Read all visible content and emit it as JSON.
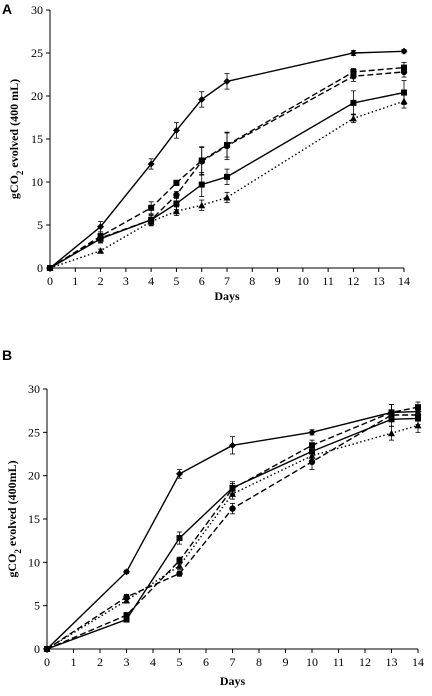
{
  "chart_data": [
    {
      "type": "line",
      "panel": "A",
      "xlabel": "Days",
      "ylabel": "gCO2 evolved (400 mL)",
      "ylabel_main": "gCO",
      "ylabel_sub": "2",
      "ylabel_rest": " evolved (400 mL)",
      "xlim": [
        0,
        14
      ],
      "ylim": [
        0,
        30
      ],
      "xticks": [
        0,
        1,
        2,
        3,
        4,
        5,
        6,
        7,
        8,
        9,
        10,
        11,
        12,
        13,
        14
      ],
      "yticks": [
        0,
        5,
        10,
        15,
        20,
        25,
        30
      ],
      "grid": false,
      "series": [
        {
          "marker": "diamond",
          "line": "solid",
          "x": [
            0,
            2,
            4,
            5,
            6,
            7,
            12,
            14
          ],
          "y": [
            0,
            4.8,
            12.1,
            16.0,
            19.6,
            21.7,
            25.0,
            25.2
          ],
          "err": [
            0,
            0.6,
            0.6,
            0.9,
            0.9,
            0.9,
            0.3,
            0.2
          ]
        },
        {
          "marker": "square",
          "line": "dashed",
          "x": [
            0,
            2,
            4,
            5,
            6,
            7,
            12,
            14
          ],
          "y": [
            0,
            3.7,
            7.0,
            9.9,
            12.5,
            14.3,
            22.8,
            23.3
          ],
          "err": [
            0,
            0.5,
            0.7,
            0.3,
            1.6,
            1.4,
            0.4,
            0.6
          ]
        },
        {
          "marker": "circle",
          "line": "dashed",
          "x": [
            0,
            2,
            4,
            5,
            6,
            7,
            12,
            14
          ],
          "y": [
            0,
            3.5,
            5.6,
            8.5,
            12.4,
            14.2,
            22.3,
            22.8
          ],
          "err": [
            0,
            0.5,
            0.5,
            0.4,
            1.6,
            1.6,
            0.6,
            0.6
          ]
        },
        {
          "marker": "square",
          "line": "solid",
          "x": [
            0,
            2,
            4,
            5,
            6,
            7,
            12,
            14
          ],
          "y": [
            0,
            3.4,
            5.6,
            7.5,
            9.7,
            10.6,
            19.2,
            20.4
          ],
          "err": [
            0,
            0.5,
            0.6,
            0.7,
            1.4,
            0.9,
            1.4,
            1.4
          ]
        },
        {
          "marker": "triangle",
          "line": "dotted",
          "x": [
            0,
            2,
            4,
            5,
            6,
            7,
            12,
            14
          ],
          "y": [
            0,
            2.0,
            5.4,
            6.6,
            7.3,
            8.2,
            17.4,
            19.4
          ],
          "err": [
            0,
            0.2,
            0.5,
            0.5,
            0.6,
            0.6,
            0.5,
            0.8
          ]
        }
      ]
    },
    {
      "type": "line",
      "panel": "B",
      "xlabel": "Days",
      "ylabel": "gCO2 evolved (400mL)",
      "ylabel_main": "gCO",
      "ylabel_sub": "2",
      "ylabel_rest": " evolved (400mL)",
      "xlim": [
        0,
        14
      ],
      "ylim": [
        0,
        30
      ],
      "xticks": [
        0,
        1,
        2,
        3,
        4,
        5,
        6,
        7,
        8,
        9,
        10,
        11,
        12,
        13,
        14
      ],
      "yticks": [
        0,
        5,
        10,
        15,
        20,
        25,
        30
      ],
      "grid": false,
      "series": [
        {
          "marker": "diamond",
          "line": "solid",
          "x": [
            0,
            3,
            5,
            7,
            10,
            13,
            14
          ],
          "y": [
            0,
            8.9,
            20.2,
            23.5,
            25.0,
            27.3,
            27.4
          ],
          "err": [
            0,
            0.2,
            0.5,
            1.0,
            0.3,
            0.9,
            0.7
          ]
        },
        {
          "marker": "square",
          "line": "solid",
          "x": [
            0,
            3,
            5,
            7,
            10,
            13,
            14
          ],
          "y": [
            0,
            3.4,
            12.8,
            18.6,
            22.8,
            26.5,
            26.6
          ],
          "err": [
            0,
            0.3,
            0.7,
            0.7,
            0.7,
            0.8,
            0.7
          ]
        },
        {
          "marker": "square",
          "line": "dashed",
          "x": [
            0,
            3,
            5,
            7,
            10,
            13,
            14
          ],
          "y": [
            0,
            3.9,
            10.2,
            18.5,
            23.5,
            27.3,
            27.9
          ],
          "err": [
            0,
            0.3,
            0.4,
            0.6,
            0.6,
            0.9,
            0.6
          ]
        },
        {
          "marker": "circle",
          "line": "dashed",
          "x": [
            0,
            3,
            5,
            7,
            10,
            13,
            14
          ],
          "y": [
            0,
            6.0,
            8.7,
            16.2,
            21.6,
            27.0,
            27.0
          ],
          "err": [
            0,
            0.3,
            0.3,
            0.6,
            0.9,
            0.6,
            0.7
          ]
        },
        {
          "marker": "triangle",
          "line": "dotted",
          "x": [
            0,
            3,
            5,
            7,
            10,
            13,
            14
          ],
          "y": [
            0,
            5.6,
            9.6,
            17.9,
            22.3,
            24.9,
            25.8
          ],
          "err": [
            0,
            0.3,
            0.4,
            0.6,
            0.7,
            0.8,
            0.8
          ]
        }
      ]
    }
  ]
}
